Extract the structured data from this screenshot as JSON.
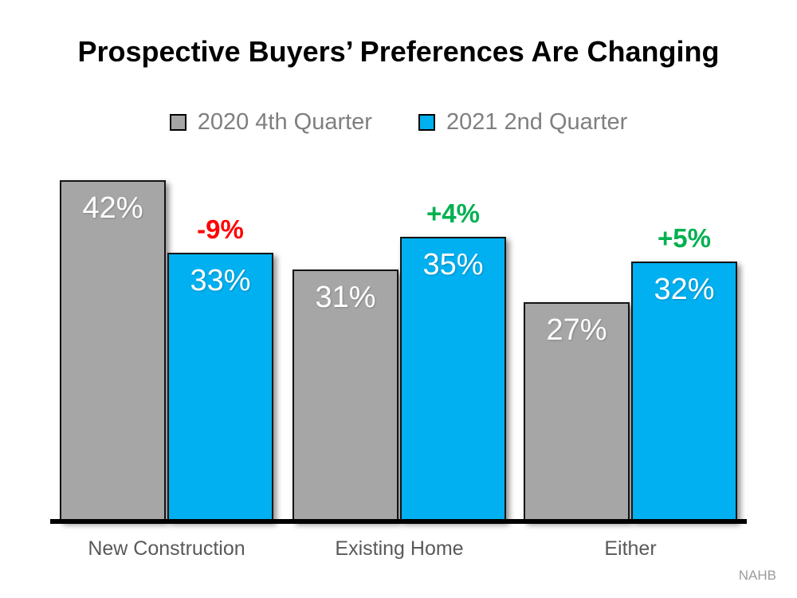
{
  "source": "NAHB",
  "chart_data": {
    "type": "bar",
    "title": "Prospective Buyers’ Preferences Are Changing",
    "categories": [
      "New Construction",
      "Existing Home",
      "Either"
    ],
    "series": [
      {
        "name": "2020 4th Quarter",
        "color": "#a6a6a6",
        "values": [
          42,
          31,
          27
        ]
      },
      {
        "name": "2021 2nd Quarter",
        "color": "#00b0f0",
        "values": [
          33,
          35,
          32
        ]
      }
    ],
    "deltas": [
      {
        "label": "-9%",
        "color": "#ff0000"
      },
      {
        "label": "+4%",
        "color": "#00b050"
      },
      {
        "label": "+5%",
        "color": "#00b050"
      }
    ],
    "value_suffix": "%",
    "value_label_color": "#ffffff",
    "xlabel": "",
    "ylabel": "",
    "ylim": [
      0,
      44
    ],
    "grid": false,
    "legend_position": "top"
  }
}
